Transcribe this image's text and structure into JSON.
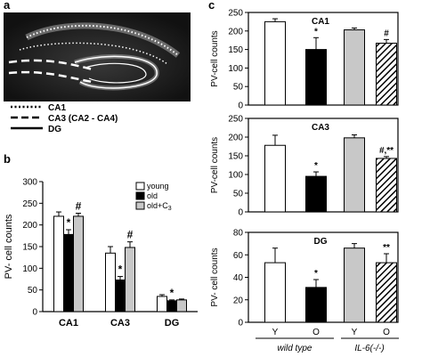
{
  "panels": {
    "a": {
      "letter": "a",
      "legend": [
        {
          "label": "CA1",
          "style": "dotted"
        },
        {
          "label": "CA3 (CA2 - CA4)",
          "style": "dashed"
        },
        {
          "label": "DG",
          "style": "solid"
        }
      ]
    },
    "b": {
      "letter": "b"
    },
    "c": {
      "letter": "c"
    }
  },
  "colors": {
    "young": "#ffffff",
    "old": "#000000",
    "treated": "#c8c8c8",
    "micrograph": "#1a1a1a"
  },
  "chart_data": [
    {
      "id": "b",
      "type": "bar",
      "ylabel": "PV- cell counts",
      "ylim": [
        0,
        300
      ],
      "yticks": [
        0,
        50,
        100,
        150,
        200,
        250,
        300
      ],
      "categories": [
        "CA1",
        "CA3",
        "DG"
      ],
      "series": [
        {
          "name": "young",
          "values": [
            220,
            135,
            35
          ],
          "errors": [
            10,
            15,
            4
          ],
          "fill": "white"
        },
        {
          "name": "old",
          "values": [
            178,
            73,
            25
          ],
          "errors": [
            11,
            8,
            2
          ],
          "fill": "black"
        },
        {
          "name": "old+C3",
          "values": [
            220,
            148,
            27
          ],
          "errors": [
            7,
            13,
            2
          ],
          "fill": "gray"
        }
      ],
      "significance": [
        {
          "category": 0,
          "series": 1,
          "mark": "*"
        },
        {
          "category": 0,
          "series": 2,
          "mark": "#"
        },
        {
          "category": 1,
          "series": 1,
          "mark": "*"
        },
        {
          "category": 1,
          "series": 2,
          "mark": "#"
        },
        {
          "category": 2,
          "series": 1,
          "mark": "*"
        }
      ],
      "legend_position": "top-right"
    },
    {
      "id": "c-ca1",
      "type": "bar",
      "title": "CA1",
      "ylabel": "PV-cell counts",
      "ylim": [
        0,
        250
      ],
      "yticks": [
        0,
        50,
        100,
        150,
        200,
        250
      ],
      "categories": [
        "Y",
        "O",
        "Y",
        "O"
      ],
      "values": [
        225,
        150,
        203,
        167
      ],
      "errors": [
        8,
        32,
        5,
        10
      ],
      "fills": [
        "white",
        "black",
        "gray",
        "hatched"
      ],
      "marks": [
        "",
        "*",
        "",
        "#"
      ]
    },
    {
      "id": "c-ca3",
      "type": "bar",
      "title": "CA3",
      "ylabel": "PV-cell counts",
      "ylim": [
        0,
        250
      ],
      "yticks": [
        0,
        50,
        100,
        150,
        200,
        250
      ],
      "categories": [
        "Y",
        "O",
        "Y",
        "O"
      ],
      "values": [
        178,
        95,
        198,
        143
      ],
      "errors": [
        27,
        12,
        8,
        5
      ],
      "fills": [
        "white",
        "black",
        "gray",
        "hatched"
      ],
      "marks": [
        "",
        "*",
        "",
        "#,**"
      ]
    },
    {
      "id": "c-dg",
      "type": "bar",
      "title": "DG",
      "ylabel": "PV- cell counts",
      "ylim": [
        0,
        80
      ],
      "yticks": [
        0,
        20,
        40,
        60,
        80
      ],
      "categories": [
        "Y",
        "O",
        "Y",
        "O"
      ],
      "values": [
        53,
        31,
        66,
        53
      ],
      "errors": [
        13,
        7,
        4,
        8
      ],
      "fills": [
        "white",
        "black",
        "gray",
        "hatched"
      ],
      "marks": [
        "",
        "*",
        "",
        "**"
      ],
      "group_labels": [
        "wild type",
        "IL-6(-/-)"
      ]
    }
  ]
}
